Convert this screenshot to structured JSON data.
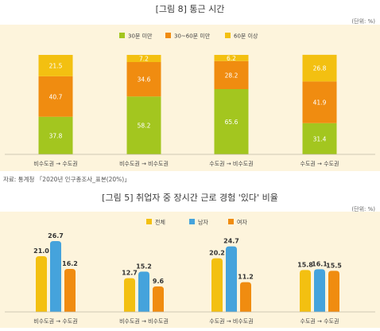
{
  "colors": {
    "panel_bg": "#fdf4dc",
    "green": "#a3c61f",
    "orange": "#f08c10",
    "yellow": "#f3c011",
    "blue": "#45a3dc"
  },
  "figure1": {
    "title": "[그림 8] 통근 시간",
    "unit": "(단위: %)",
    "source": "자료: 통계청 「2020년 인구총조사_표본(20%)」"
  },
  "figure2": {
    "title": "[그림 5] 취업자 중 장시간 근로 경험 '있다' 비율",
    "unit": "(단위: %)"
  },
  "chart_data": [
    {
      "type": "bar",
      "stacked": true,
      "categories": [
        "비수도권 → 수도권",
        "비수도권 → 비수도권",
        "수도권 → 비수도권",
        "수도권 → 수도권"
      ],
      "series": [
        {
          "name": "30분 미만",
          "color": "#a3c61f",
          "values": [
            37.8,
            58.2,
            65.6,
            31.4
          ]
        },
        {
          "name": "30~60분 미만",
          "color": "#f08c10",
          "values": [
            40.7,
            34.6,
            28.2,
            41.9
          ]
        },
        {
          "name": "60분 이상",
          "color": "#f3c011",
          "values": [
            21.5,
            7.2,
            6.2,
            26.8
          ]
        }
      ],
      "legend_position": "top-right",
      "ylim": [
        0,
        100
      ]
    },
    {
      "type": "bar",
      "categories": [
        "비수도권 → 수도권",
        "비수도권 → 비수도권",
        "수도권 → 비수도권",
        "수도권 → 수도권"
      ],
      "series": [
        {
          "name": "전체",
          "color": "#f3c011",
          "values": [
            21.0,
            12.7,
            20.2,
            15.8
          ]
        },
        {
          "name": "남자",
          "color": "#45a3dc",
          "values": [
            26.7,
            15.2,
            24.7,
            16.1
          ]
        },
        {
          "name": "여자",
          "color": "#f08c10",
          "values": [
            16.2,
            9.6,
            11.2,
            15.5
          ]
        }
      ],
      "legend_position": "top-center",
      "ylim": [
        0,
        30
      ]
    }
  ]
}
